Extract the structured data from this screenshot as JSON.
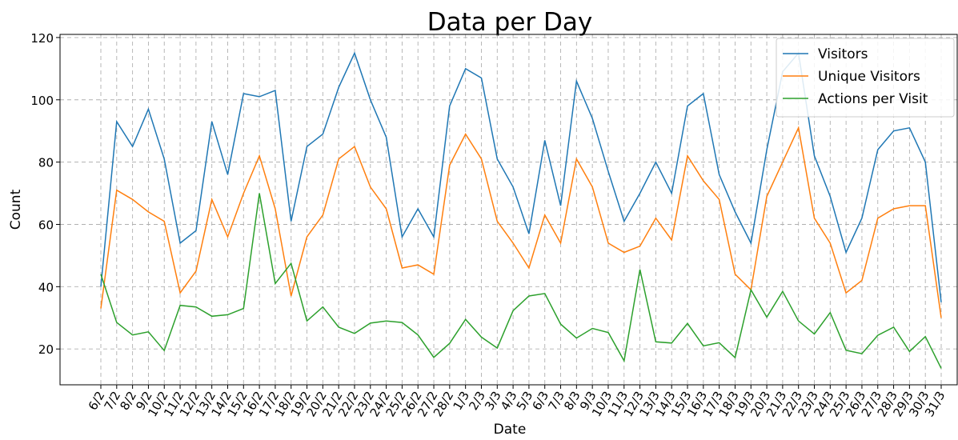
{
  "chart_data": {
    "type": "line",
    "title": "Data per Day",
    "x_label": "Date",
    "y_label": "Count",
    "categories": [
      "6/2",
      "7/2",
      "8/2",
      "9/2",
      "10/2",
      "11/2",
      "12/2",
      "13/2",
      "14/2",
      "15/2",
      "16/2",
      "17/2",
      "18/2",
      "19/2",
      "20/2",
      "21/2",
      "22/2",
      "23/2",
      "24/2",
      "25/2",
      "26/2",
      "27/2",
      "28/2",
      "1/3",
      "2/3",
      "3/3",
      "4/3",
      "5/3",
      "6/3",
      "7/3",
      "8/3",
      "9/3",
      "10/3",
      "11/3",
      "12/3",
      "13/3",
      "14/3",
      "15/3",
      "16/3",
      "17/3",
      "18/3",
      "19/3",
      "20/3",
      "21/3",
      "22/3",
      "23/3",
      "24/3",
      "25/3",
      "26/3",
      "27/3",
      "28/3",
      "29/3",
      "30/3",
      "31/3"
    ],
    "series": [
      {
        "name": "Visitors",
        "color": "#1f77b4",
        "values": [
          40,
          93,
          85,
          97,
          81,
          54,
          58,
          93,
          76,
          102,
          101,
          103,
          61,
          85,
          89,
          104,
          115,
          100,
          88,
          56,
          65,
          56,
          98,
          110,
          107,
          81,
          72,
          57,
          87,
          66,
          106,
          94,
          77,
          61,
          70,
          80,
          70,
          98,
          102,
          76,
          64,
          54,
          84,
          109,
          115,
          82,
          69,
          51,
          62,
          84,
          90,
          91,
          80,
          35
        ]
      },
      {
        "name": "Unique Visitors",
        "color": "#ff7f0e",
        "values": [
          33,
          71,
          68,
          64,
          61,
          38,
          45,
          68,
          56,
          70,
          82,
          65,
          37,
          56,
          63,
          81,
          85,
          72,
          65,
          46,
          47,
          44,
          79,
          89,
          81,
          61,
          54,
          46,
          63,
          54,
          81,
          72,
          54,
          51,
          53,
          62,
          55,
          82,
          74,
          68,
          44,
          39,
          69,
          80,
          91,
          62,
          54,
          38,
          42,
          62,
          65,
          66,
          66,
          30
        ]
      },
      {
        "name": "Actions per Visit",
        "color": "#2ca02c",
        "values": [
          44,
          28.5,
          24.5,
          25.5,
          19.5,
          34,
          33.5,
          30.5,
          31,
          33,
          70,
          41,
          47.5,
          29,
          33.5,
          27,
          25,
          28.3,
          29,
          28.5,
          24.5,
          17.3,
          21.8,
          29.5,
          23.8,
          20.3,
          32.3,
          37,
          37.8,
          28,
          23.5,
          26.6,
          25.3,
          16.2,
          45.5,
          22.3,
          21.9,
          28.2,
          21,
          22,
          17.2,
          39,
          30.2,
          38.5,
          29,
          24.8,
          31.7,
          19.6,
          18.5,
          24.4,
          27,
          19.2,
          24,
          13.8
        ]
      }
    ],
    "ylim": [
      8.5,
      121
    ],
    "yticks": [
      20,
      40,
      60,
      80,
      100,
      120
    ],
    "grid": true,
    "legend": "upper right"
  }
}
